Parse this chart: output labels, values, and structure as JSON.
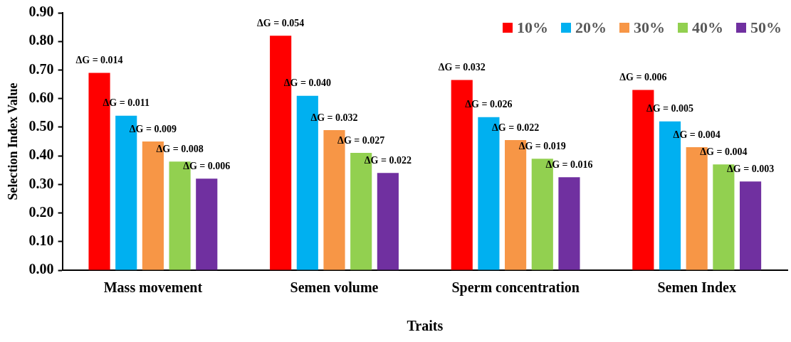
{
  "chart_data": {
    "type": "bar",
    "xlabel": "Traits",
    "ylabel": "Selection Index Value",
    "categories": [
      "Mass movement",
      "Semen volume",
      "Sperm concentration",
      "Semen Index"
    ],
    "series": [
      {
        "name": "10%",
        "color": "#ff0000",
        "values": [
          0.69,
          0.82,
          0.665,
          0.63
        ]
      },
      {
        "name": "20%",
        "color": "#00b0f0",
        "values": [
          0.54,
          0.61,
          0.535,
          0.52
        ]
      },
      {
        "name": "30%",
        "color": "#f79646",
        "values": [
          0.45,
          0.49,
          0.455,
          0.43
        ]
      },
      {
        "name": "40%",
        "color": "#92d050",
        "values": [
          0.38,
          0.41,
          0.39,
          0.37
        ]
      },
      {
        "name": "50%",
        "color": "#7030a0",
        "values": [
          0.32,
          0.34,
          0.325,
          0.31
        ]
      }
    ],
    "annotations": [
      "ΔG = 0.014",
      "ΔG = 0.011",
      "ΔG = 0.009",
      "ΔG = 0.008",
      "ΔG = 0.006",
      "ΔG = 0.054",
      "ΔG = 0.040",
      "ΔG = 0.032",
      "ΔG = 0.027",
      "ΔG = 0.022",
      "ΔG = 0.032",
      "ΔG = 0.026",
      "ΔG = 0.022",
      "ΔG = 0.019",
      "ΔG = 0.016",
      "ΔG = 0.006",
      "ΔG = 0.005",
      "ΔG = 0.004",
      "ΔG = 0.004",
      "ΔG = 0.003"
    ],
    "ylim": [
      0,
      0.9
    ],
    "yticks": [
      {
        "value": 0,
        "label": "0.00"
      },
      {
        "value": 0.1,
        "label": "0.10"
      },
      {
        "value": 0.2,
        "label": "0.20"
      },
      {
        "value": 0.3,
        "label": "0.30"
      },
      {
        "value": 0.4,
        "label": "0.40"
      },
      {
        "value": 0.5,
        "label": "0.50"
      },
      {
        "value": 0.6,
        "label": "0.60"
      },
      {
        "value": 0.7,
        "label": "0.70"
      },
      {
        "value": 0.8,
        "label": "0.80"
      },
      {
        "value": 0.9,
        "label": "0.90"
      }
    ],
    "grid": false,
    "legend": "top right"
  }
}
